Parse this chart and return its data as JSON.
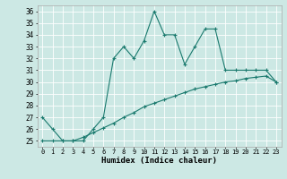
{
  "x": [
    0,
    1,
    2,
    3,
    4,
    5,
    6,
    7,
    8,
    9,
    10,
    11,
    12,
    13,
    14,
    15,
    16,
    17,
    18,
    19,
    20,
    21,
    22,
    23
  ],
  "humidex": [
    27,
    26,
    25,
    25,
    25,
    26,
    27,
    32,
    33,
    32,
    33.5,
    36,
    34,
    34,
    31.5,
    33,
    34.5,
    34.5,
    31,
    31,
    31,
    31,
    31,
    30
  ],
  "line2": [
    25,
    25,
    25,
    25,
    25.3,
    25.7,
    26.1,
    26.5,
    27.0,
    27.4,
    27.9,
    28.2,
    28.5,
    28.8,
    29.1,
    29.4,
    29.6,
    29.8,
    30.0,
    30.1,
    30.3,
    30.4,
    30.5,
    30
  ],
  "xlabel": "Humidex (Indice chaleur)",
  "xlim": [
    -0.5,
    23.5
  ],
  "ylim": [
    24.5,
    36.5
  ],
  "yticks": [
    25,
    26,
    27,
    28,
    29,
    30,
    31,
    32,
    33,
    34,
    35,
    36
  ],
  "xticks": [
    0,
    1,
    2,
    3,
    4,
    5,
    6,
    7,
    8,
    9,
    10,
    11,
    12,
    13,
    14,
    15,
    16,
    17,
    18,
    19,
    20,
    21,
    22,
    23
  ],
  "bg_color": "#cce8e4",
  "line_color": "#1a7a6e",
  "grid_color": "#ffffff"
}
